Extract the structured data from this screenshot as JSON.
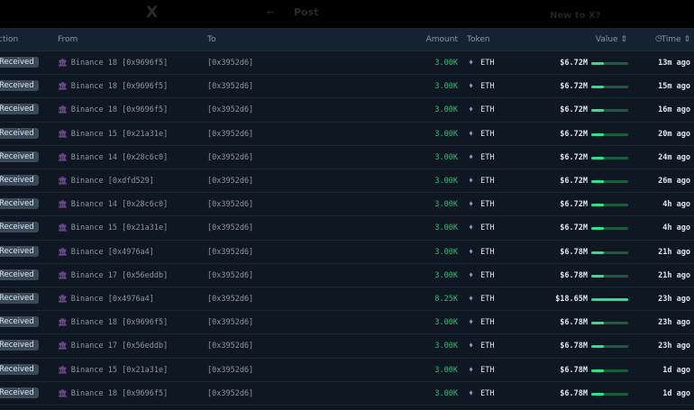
{
  "topbar": {
    "logo": "X",
    "back": "←",
    "post": "Post",
    "new": "New to X?"
  },
  "columns": {
    "action": "ction",
    "from": "From",
    "to": "To",
    "amount": "Amount",
    "token": "Token",
    "value": "Value ⇕",
    "time": "Time ⇕",
    "time_icon": "clock-icon"
  },
  "colors": {
    "amount": "#2fbf71",
    "bar": "#2fe08a",
    "badge": "#3a4a5a"
  },
  "rows": [
    {
      "action": "Received",
      "from": "Binance 18 [0x9696f5]",
      "to": "[0x3952d6]",
      "amount": "3.00K",
      "token": "ETH",
      "value": "$6.72M",
      "bar": 0.33,
      "time": "13m ago"
    },
    {
      "action": "Received",
      "from": "Binance 18 [0x9696f5]",
      "to": "[0x3952d6]",
      "amount": "3.00K",
      "token": "ETH",
      "value": "$6.72M",
      "bar": 0.33,
      "time": "15m ago"
    },
    {
      "action": "Received",
      "from": "Binance 18 [0x9696f5]",
      "to": "[0x3952d6]",
      "amount": "3.00K",
      "token": "ETH",
      "value": "$6.72M",
      "bar": 0.33,
      "time": "16m ago"
    },
    {
      "action": "Received",
      "from": "Binance 15 [0x21a31e]",
      "to": "[0x3952d6]",
      "amount": "3.00K",
      "token": "ETH",
      "value": "$6.72M",
      "bar": 0.33,
      "time": "20m ago"
    },
    {
      "action": "Received",
      "from": "Binance 14 [0x28c6c0]",
      "to": "[0x3952d6]",
      "amount": "3.00K",
      "token": "ETH",
      "value": "$6.72M",
      "bar": 0.33,
      "time": "24m ago"
    },
    {
      "action": "Received",
      "from": "Binance [0xdfd529]",
      "to": "[0x3952d6]",
      "amount": "3.00K",
      "token": "ETH",
      "value": "$6.72M",
      "bar": 0.33,
      "time": "26m ago"
    },
    {
      "action": "Received",
      "from": "Binance 14 [0x28c6c0]",
      "to": "[0x3952d6]",
      "amount": "3.00K",
      "token": "ETH",
      "value": "$6.72M",
      "bar": 0.33,
      "time": "4h ago"
    },
    {
      "action": "Received",
      "from": "Binance 15 [0x21a31e]",
      "to": "[0x3952d6]",
      "amount": "3.00K",
      "token": "ETH",
      "value": "$6.72M",
      "bar": 0.33,
      "time": "4h ago"
    },
    {
      "action": "Received",
      "from": "Binance [0x4976a4]",
      "to": "[0x3952d6]",
      "amount": "3.00K",
      "token": "ETH",
      "value": "$6.78M",
      "bar": 0.34,
      "time": "21h ago"
    },
    {
      "action": "Received",
      "from": "Binance 17 [0x56eddb]",
      "to": "[0x3952d6]",
      "amount": "3.00K",
      "token": "ETH",
      "value": "$6.78M",
      "bar": 0.34,
      "time": "21h ago"
    },
    {
      "action": "Received",
      "from": "Binance [0x4976a4]",
      "to": "[0x3952d6]",
      "amount": "8.25K",
      "token": "ETH",
      "value": "$18.65M",
      "bar": 1.0,
      "time": "23h ago"
    },
    {
      "action": "Received",
      "from": "Binance 18 [0x9696f5]",
      "to": "[0x3952d6]",
      "amount": "3.00K",
      "token": "ETH",
      "value": "$6.78M",
      "bar": 0.34,
      "time": "23h ago"
    },
    {
      "action": "Received",
      "from": "Binance 17 [0x56eddb]",
      "to": "[0x3952d6]",
      "amount": "3.00K",
      "token": "ETH",
      "value": "$6.78M",
      "bar": 0.34,
      "time": "23h ago"
    },
    {
      "action": "Received",
      "from": "Binance 15 [0x21a31e]",
      "to": "[0x3952d6]",
      "amount": "3.00K",
      "token": "ETH",
      "value": "$6.78M",
      "bar": 0.34,
      "time": "1d ago"
    },
    {
      "action": "Received",
      "from": "Binance 18 [0x9696f5]",
      "to": "[0x3952d6]",
      "amount": "3.00K",
      "token": "ETH",
      "value": "$6.78M",
      "bar": 0.34,
      "time": "1d ago"
    }
  ]
}
